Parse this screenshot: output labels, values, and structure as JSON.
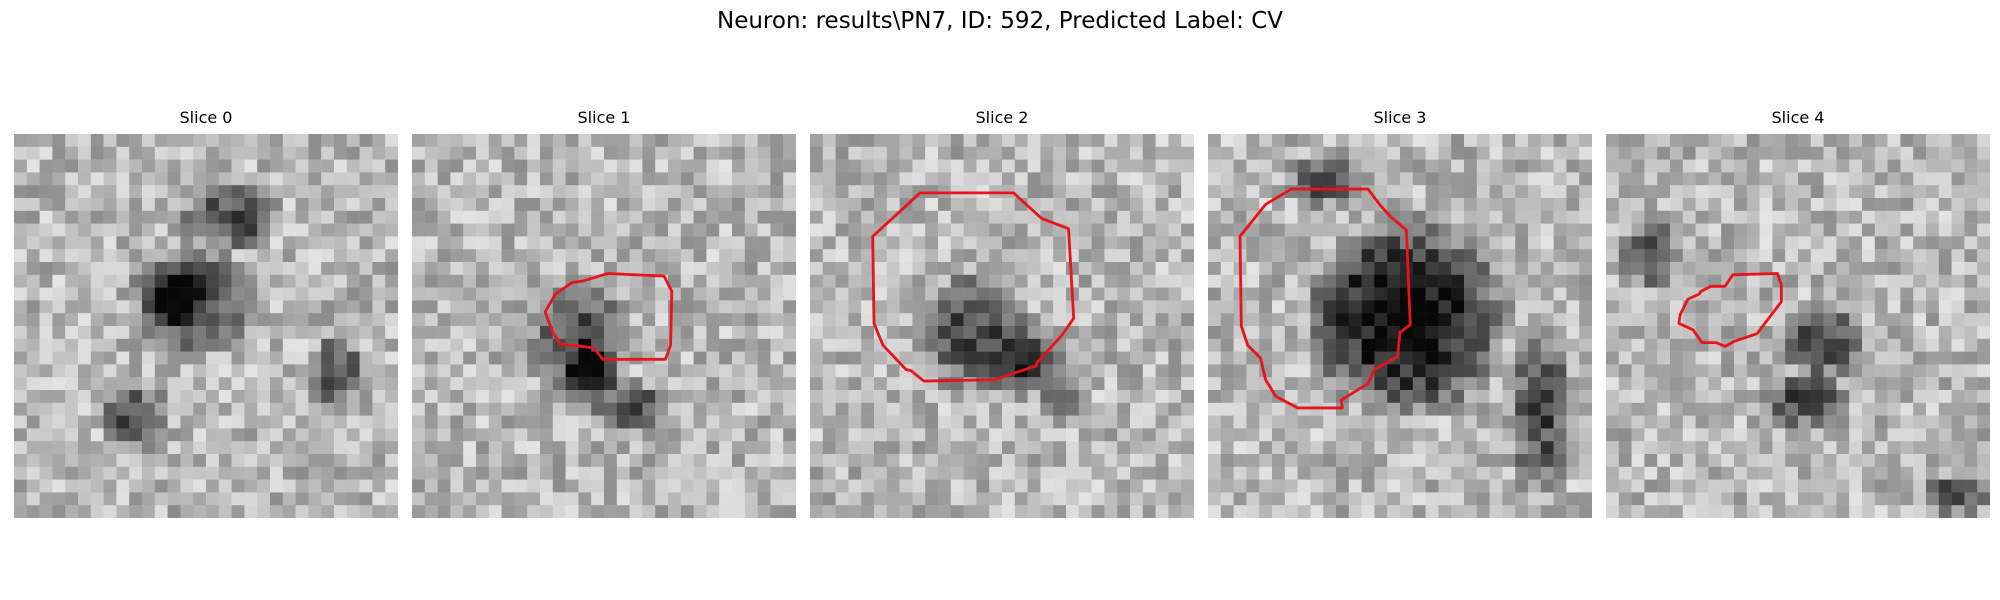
{
  "figure": {
    "title": "Neuron: results\\PN7, ID: 592, Predicted Label: CV"
  },
  "panels": [
    {
      "title": "Slice 0",
      "contour": [],
      "seed": 11,
      "blobs": [
        [
          0.55,
          0.2,
          0.15,
          0.1
        ],
        [
          0.45,
          0.42,
          0.18,
          0.16
        ],
        [
          0.4,
          0.4,
          0.1,
          0.08
        ],
        [
          0.3,
          0.72,
          0.1,
          0.1
        ],
        [
          0.82,
          0.6,
          0.08,
          0.1
        ]
      ]
    },
    {
      "title": "Slice 1",
      "contour": [
        [
          15.3,
          0.9
        ],
        [
          19.7,
          1.1
        ],
        [
          20.3,
          2.3
        ],
        [
          20.2,
          6.5
        ],
        [
          19.8,
          7.6
        ],
        [
          14.9,
          7.6
        ],
        [
          14.2,
          6.7
        ],
        [
          11.6,
          6.4
        ],
        [
          11.0,
          5.5
        ],
        [
          10.4,
          3.9
        ],
        [
          11.2,
          2.5
        ],
        [
          12.5,
          1.6
        ],
        [
          13.3,
          1.5
        ]
      ],
      "seed": 23,
      "blobs": [
        [
          0.42,
          0.52,
          0.14,
          0.18
        ],
        [
          0.55,
          0.7,
          0.12,
          0.08
        ],
        [
          0.45,
          0.6,
          0.08,
          0.08
        ]
      ]
    },
    {
      "title": "Slice 2",
      "contour": [
        [
          8.6,
          -5.4
        ],
        [
          15.9,
          -5.4
        ],
        [
          18.1,
          -3.4
        ],
        [
          20.2,
          -2.6
        ],
        [
          20.6,
          4.4
        ],
        [
          19.7,
          5.7
        ],
        [
          17.7,
          7.9
        ],
        [
          17.7,
          8.1
        ],
        [
          14.4,
          9.2
        ],
        [
          8.9,
          9.3
        ],
        [
          7.9,
          8.5
        ],
        [
          7.5,
          8.4
        ],
        [
          5.7,
          6.5
        ],
        [
          5.0,
          4.8
        ],
        [
          4.9,
          -2.0
        ]
      ],
      "seed": 37,
      "blobs": [
        [
          0.42,
          0.5,
          0.16,
          0.18
        ],
        [
          0.55,
          0.58,
          0.1,
          0.1
        ],
        [
          0.65,
          0.68,
          0.08,
          0.06
        ]
      ]
    },
    {
      "title": "Slice 3",
      "contour": [
        [
          2.5,
          -2.0
        ],
        [
          4.5,
          -4.5
        ],
        [
          6.5,
          -5.7
        ],
        [
          12.5,
          -5.7
        ],
        [
          13.4,
          -4.5
        ],
        [
          14.3,
          -3.5
        ],
        [
          15.5,
          -2.5
        ],
        [
          15.8,
          4.9
        ],
        [
          15.0,
          5.5
        ],
        [
          14.8,
          7.4
        ],
        [
          13.0,
          8.4
        ],
        [
          12.5,
          9.5
        ],
        [
          10.4,
          10.8
        ],
        [
          10.5,
          11.4
        ],
        [
          7.0,
          11.4
        ],
        [
          5.3,
          10.5
        ],
        [
          4.5,
          9.2
        ],
        [
          4.1,
          7.5
        ],
        [
          3.1,
          6.5
        ],
        [
          2.6,
          5.0
        ]
      ],
      "seed": 41,
      "blobs": [
        [
          0.5,
          0.46,
          0.28,
          0.28
        ],
        [
          0.85,
          0.7,
          0.1,
          0.25
        ],
        [
          0.3,
          0.1,
          0.12,
          0.08
        ]
      ]
    },
    {
      "title": "Slice 4",
      "contour": [
        [
          13.4,
          0.9
        ],
        [
          13.7,
          1.8
        ],
        [
          13.7,
          3.1
        ],
        [
          11.8,
          5.6
        ],
        [
          10.0,
          6.2
        ],
        [
          9.3,
          6.6
        ],
        [
          8.6,
          6.3
        ],
        [
          7.5,
          6.3
        ],
        [
          6.8,
          5.3
        ],
        [
          5.7,
          4.8
        ],
        [
          5.8,
          4.1
        ],
        [
          6.4,
          2.9
        ],
        [
          7.3,
          2.5
        ],
        [
          7.4,
          2.3
        ],
        [
          8.2,
          1.9
        ],
        [
          9.3,
          1.9
        ],
        [
          9.9,
          1.0
        ]
      ],
      "seed": 53,
      "blobs": [
        [
          0.55,
          0.52,
          0.12,
          0.12
        ],
        [
          0.5,
          0.68,
          0.14,
          0.08
        ],
        [
          0.1,
          0.3,
          0.08,
          0.1
        ],
        [
          0.9,
          0.92,
          0.1,
          0.06
        ]
      ]
    }
  ]
}
